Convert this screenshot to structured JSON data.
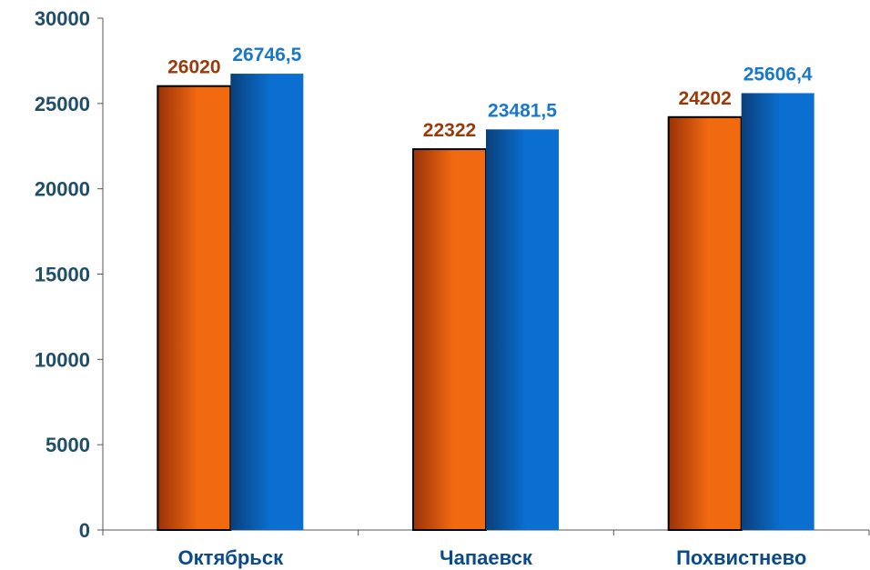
{
  "chart_data": {
    "type": "bar",
    "title": "",
    "xlabel": "",
    "ylabel": "",
    "categories": [
      "Октябрьск",
      "Чапаевск",
      "Похвистнево"
    ],
    "ylim": [
      0,
      30000
    ],
    "yticks": [
      0,
      5000,
      10000,
      15000,
      20000,
      25000,
      30000
    ],
    "ytick_labels": [
      "0",
      "5000",
      "10000",
      "15000",
      "20000",
      "25000",
      "30000"
    ],
    "grid": false,
    "legend": "none",
    "series": [
      {
        "values": [
          26020,
          22322,
          24202
        ],
        "labels": [
          "26020",
          "22322",
          "24202"
        ],
        "color": "#f26a10",
        "shade": "#9a3208",
        "label_color": "#9a3a0a"
      },
      {
        "values": [
          26746.5,
          23481.5,
          25606.4
        ],
        "labels": [
          "26746,5",
          "23481,5",
          "25606,4"
        ],
        "color": "#0a6fd0",
        "shade": "#0a3f7a",
        "label_color": "#1a78c8"
      }
    ]
  }
}
